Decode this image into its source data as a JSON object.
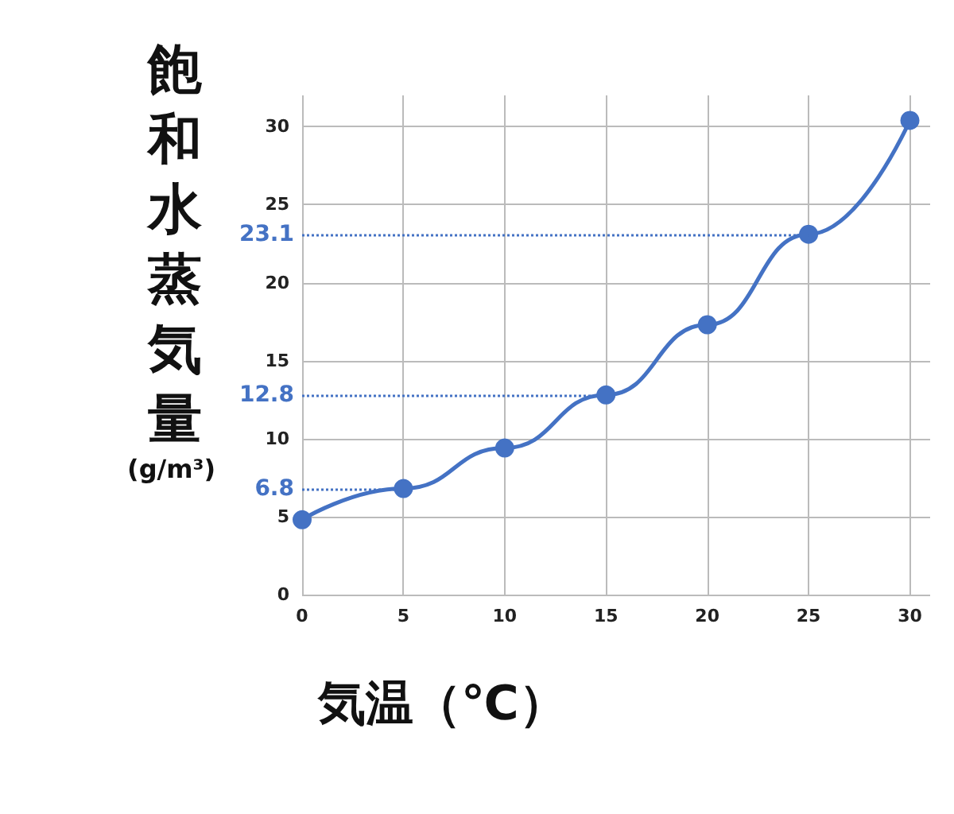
{
  "chart_data": {
    "type": "line",
    "xlabel": "気温（℃）",
    "ylabel": "飽和水蒸気量(g/m³)",
    "x": [
      0,
      5,
      10,
      15,
      20,
      25,
      30
    ],
    "series": [
      {
        "color": "#4472c4",
        "values": [
          4.8,
          6.8,
          9.4,
          12.8,
          17.3,
          23.1,
          30.4
        ]
      }
    ],
    "xlim": [
      0,
      31
    ],
    "ylim": [
      0,
      32
    ],
    "xticks": [
      0,
      5,
      10,
      15,
      20,
      25,
      30
    ],
    "yticks": [
      0,
      5,
      10,
      15,
      20,
      25,
      30
    ],
    "ref_lines": [
      {
        "axis": "y",
        "value": 6.8,
        "label": "6.8",
        "color": "#4472c4",
        "line_style": "dotted"
      },
      {
        "axis": "y",
        "value": 12.8,
        "label": "12.8",
        "color": "#4472c4",
        "line_style": "dotted"
      },
      {
        "axis": "y",
        "value": 23.1,
        "label": "23.1",
        "color": "#4472c4",
        "line_style": "dotted"
      }
    ],
    "grid": true,
    "marker": "circle",
    "line_style": "solid"
  }
}
